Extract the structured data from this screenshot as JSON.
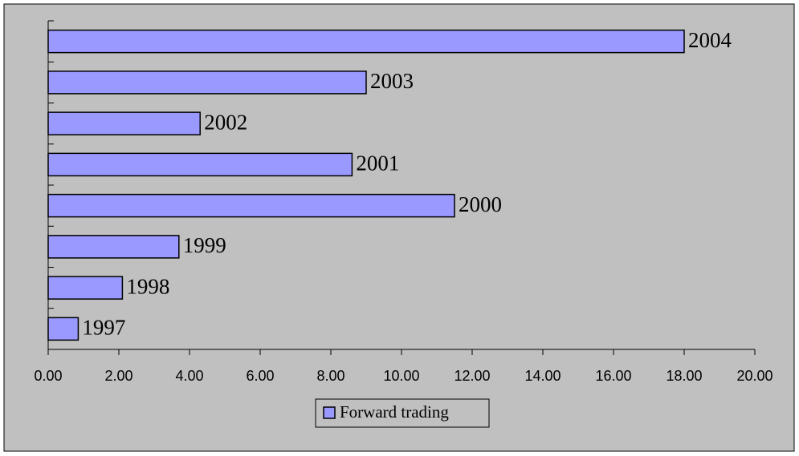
{
  "chart_data": {
    "type": "bar",
    "orientation": "horizontal",
    "categories": [
      "1997",
      "1998",
      "1999",
      "2000",
      "2001",
      "2002",
      "2003",
      "2004"
    ],
    "series": [
      {
        "name": "Forward trading",
        "color": "#9999ff",
        "values": [
          0.85,
          2.1,
          3.7,
          11.5,
          8.6,
          4.3,
          9.0,
          18.0
        ]
      }
    ],
    "xlim": [
      0,
      20
    ],
    "xticks": [
      {
        "value": 0,
        "label": "0.00"
      },
      {
        "value": 2,
        "label": "2.00"
      },
      {
        "value": 4,
        "label": "4.00"
      },
      {
        "value": 6,
        "label": "6.00"
      },
      {
        "value": 8,
        "label": "8.00"
      },
      {
        "value": 10,
        "label": "10.00"
      },
      {
        "value": 12,
        "label": "12.00"
      },
      {
        "value": 14,
        "label": "14.00"
      },
      {
        "value": 16,
        "label": "16.00"
      },
      {
        "value": 18,
        "label": "18.00"
      },
      {
        "value": 20,
        "label": "20.00"
      }
    ],
    "legend": "bottom"
  }
}
